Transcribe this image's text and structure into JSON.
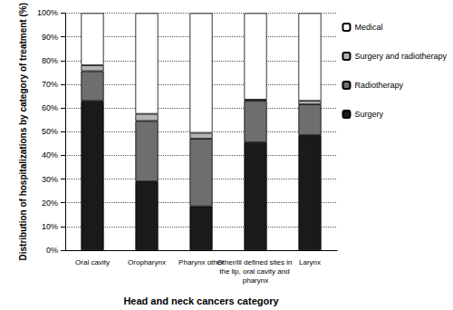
{
  "chart_data": {
    "type": "bar",
    "stacked": true,
    "x_label": "Head and neck cancers category",
    "y_label": "Distribution of hospitalizations by category of treatment (%)",
    "categories": [
      "Oral cavity",
      "Oropharynx",
      "Pharynx other",
      "Other/ill defined sites in the lip, oral cavity and pharynx",
      "Larynx"
    ],
    "series": [
      {
        "name": "Surgery",
        "color": "#1a1a1a",
        "values": [
          63,
          29,
          18.5,
          45.5,
          48.5
        ]
      },
      {
        "name": "Radiotherapy",
        "color": "#6e6e6e",
        "values": [
          12.5,
          25.5,
          28.5,
          17.5,
          13
        ]
      },
      {
        "name": "Surgery and radiotherapy",
        "color": "#b4b4b4",
        "values": [
          2.5,
          3,
          2.5,
          0.5,
          1.5
        ]
      },
      {
        "name": "Medical",
        "color": "#ffffff",
        "values": [
          22,
          42.5,
          50.5,
          36.5,
          37
        ]
      }
    ],
    "ylim": [
      0,
      100
    ],
    "yticks": [
      {
        "value": 0,
        "label": "0%"
      },
      {
        "value": 10,
        "label": "10%"
      },
      {
        "value": 20,
        "label": "20%"
      },
      {
        "value": 30,
        "label": "30%"
      },
      {
        "value": 40,
        "label": "40%"
      },
      {
        "value": 50,
        "label": "50%"
      },
      {
        "value": 60,
        "label": "60%"
      },
      {
        "value": 70,
        "label": "70%"
      },
      {
        "value": 80,
        "label": "80%"
      },
      {
        "value": 90,
        "label": "90%"
      },
      {
        "value": 100,
        "label": "100%"
      }
    ],
    "grid": true,
    "legend": "right"
  }
}
